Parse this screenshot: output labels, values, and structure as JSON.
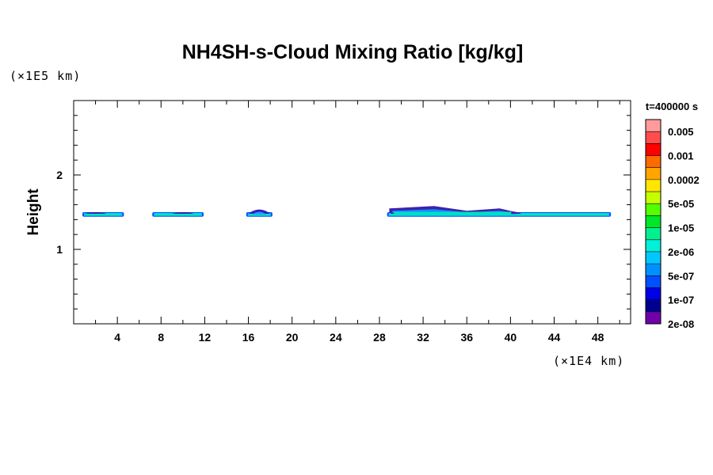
{
  "chart_data": {
    "type": "heatmap",
    "title": "NH4SH-s-Cloud Mixing Ratio [kg/kg]",
    "xlabel": "",
    "ylabel": "Height",
    "x_unit": "(×1E4 km)",
    "y_unit": "(×1E5 km)",
    "time_label": "t=400000 s",
    "xlim": [
      0,
      51
    ],
    "ylim": [
      0,
      3
    ],
    "x_ticks": [
      "4",
      "8",
      "12",
      "16",
      "20",
      "24",
      "28",
      "32",
      "36",
      "40",
      "44",
      "48"
    ],
    "y_ticks": [
      "1",
      "2"
    ],
    "legend": {
      "placement": "right",
      "labels": [
        "0.005",
        "0.001",
        "0.0002",
        "5e-05",
        "1e-05",
        "2e-06",
        "5e-07",
        "1e-07",
        "2e-08"
      ],
      "colors": [
        "#ff9b9b",
        "#ff4d4d",
        "#ff0000",
        "#ff6a00",
        "#ffa500",
        "#ffe600",
        "#c8ff00",
        "#55ff00",
        "#00e628",
        "#00f090",
        "#00f0d8",
        "#00c8ff",
        "#0090ff",
        "#0050ff",
        "#0000e6",
        "#000090",
        "#7000a8"
      ]
    },
    "clouds": [
      {
        "x0": 0.8,
        "x1": 4.6,
        "base": 1.46,
        "top": 1.49,
        "peaks": [
          [
            2.0,
            1.5
          ]
        ]
      },
      {
        "x0": 7.2,
        "x1": 11.9,
        "base": 1.46,
        "top": 1.49,
        "peaks": [
          [
            10.0,
            1.5
          ]
        ]
      },
      {
        "x0": 15.8,
        "x1": 18.2,
        "base": 1.46,
        "top": 1.49,
        "peaks": [
          [
            17.0,
            1.57
          ]
        ]
      },
      {
        "x0": 28.7,
        "x1": 49.2,
        "base": 1.46,
        "top": 1.49,
        "peaks": [
          [
            30.0,
            1.58
          ],
          [
            32.0,
            1.6
          ],
          [
            34.0,
            1.55
          ],
          [
            37.0,
            1.54
          ],
          [
            39.0,
            1.55
          ],
          [
            40.0,
            1.52
          ]
        ]
      }
    ]
  }
}
